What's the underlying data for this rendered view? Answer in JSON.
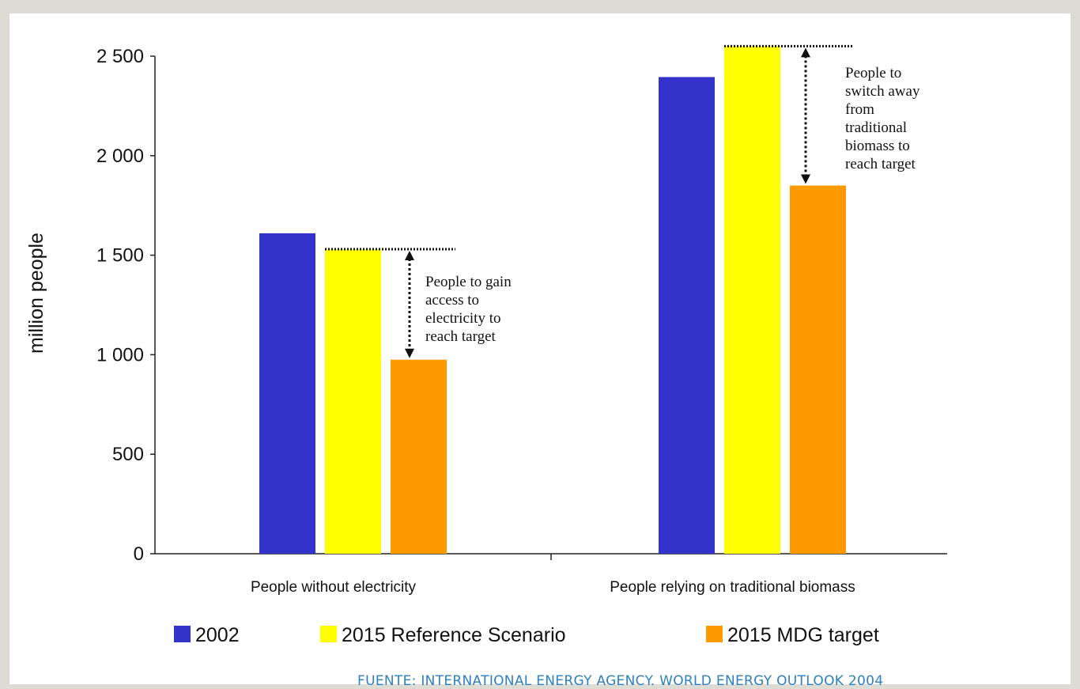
{
  "chart_data": {
    "type": "bar",
    "ylabel": "million people",
    "ylim": [
      0,
      2500
    ],
    "yticks": [
      0,
      500,
      1000,
      1500,
      2000,
      2500
    ],
    "ytick_labels": [
      "0",
      "500",
      "1 000",
      "1 500",
      "2 000",
      "2 500"
    ],
    "categories": [
      "People without electricity",
      "People relying on traditional biomass"
    ],
    "series": [
      {
        "name": "2002",
        "color": "#3333cc",
        "values": [
          1610,
          2395
        ]
      },
      {
        "name": "2015 Reference Scenario",
        "color": "#ffff00",
        "values": [
          1530,
          2550
        ]
      },
      {
        "name": "2015 MDG target",
        "color": "#ff9900",
        "values": [
          975,
          1850
        ]
      }
    ],
    "annotations": [
      {
        "lines": [
          "People to gain",
          "access to",
          "electricity to",
          "reach target"
        ]
      },
      {
        "lines": [
          "People to",
          "switch away",
          "from",
          "traditional",
          "biomass to",
          "reach target"
        ]
      }
    ],
    "legend_position": "bottom",
    "grid": false
  },
  "source": "FUENTE: INTERNATIONAL ENERGY AGENCY. WORLD ENERGY OUTLOOK 2004"
}
